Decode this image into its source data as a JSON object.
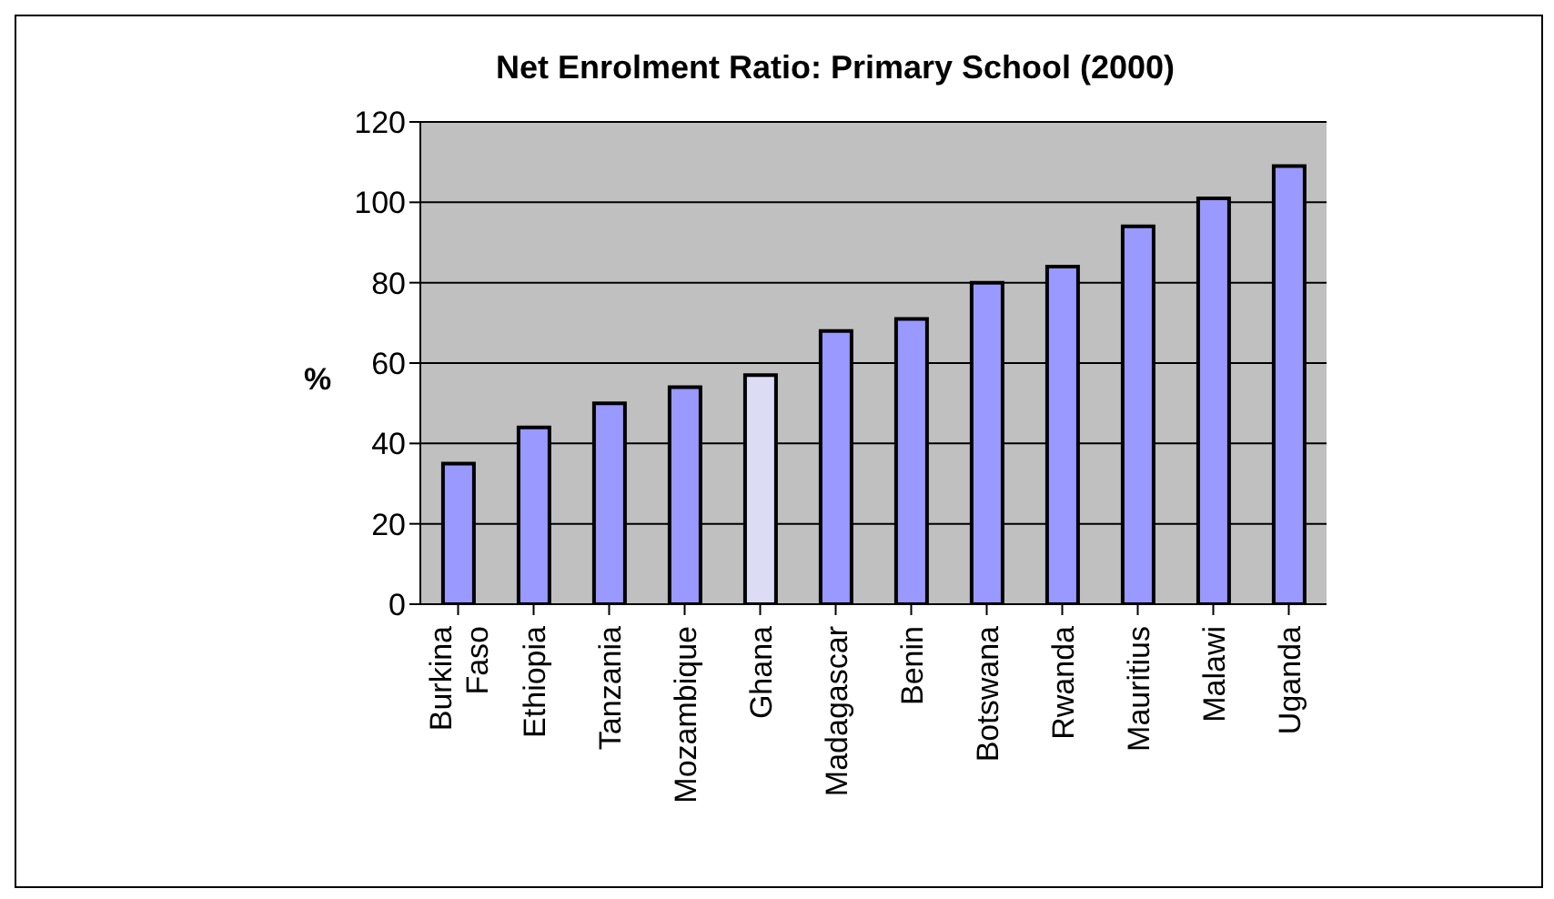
{
  "chart_data": {
    "type": "bar",
    "title": "Net Enrolment Ratio: Primary School (2000)",
    "ylabel": "%",
    "categories": [
      "Burkina Faso",
      "Ethiopia",
      "Tanzania",
      "Mozambique",
      "Ghana",
      "Madagascar",
      "Benin",
      "Botswana",
      "Rwanda",
      "Mauritius",
      "Malawi",
      "Uganda"
    ],
    "values": [
      35,
      44,
      50,
      54,
      57,
      68,
      71,
      80,
      84,
      94,
      101,
      109
    ],
    "colors": [
      "#9999ff",
      "#9999ff",
      "#9999ff",
      "#9999ff",
      "#dcdcf4",
      "#9999ff",
      "#9999ff",
      "#9999ff",
      "#9999ff",
      "#9999ff",
      "#9999ff",
      "#9999ff"
    ],
    "ylim": [
      0,
      120
    ],
    "yticks": [
      0,
      20,
      40,
      60,
      80,
      100,
      120
    ],
    "grid": "y"
  }
}
